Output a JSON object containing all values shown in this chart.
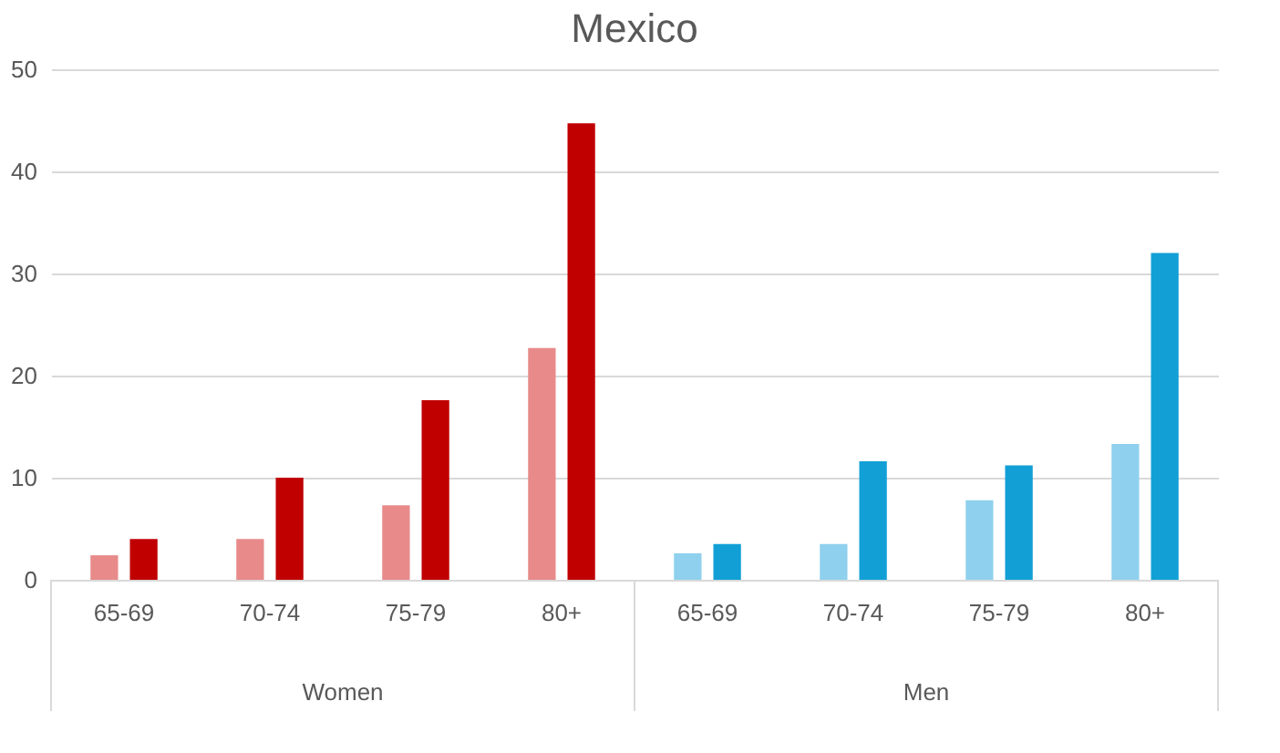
{
  "chart_data": {
    "type": "bar",
    "title": "Mexico",
    "categories": [
      "65-69",
      "70-74",
      "75-79",
      "80+",
      "65-69",
      "70-74",
      "75-79",
      "80+"
    ],
    "series": [
      {
        "colors": [
          "#e88a8a",
          "#e88a8a",
          "#e88a8a",
          "#e88a8a",
          "#8fd0ee",
          "#8fd0ee",
          "#8fd0ee",
          "#8fd0ee"
        ],
        "values": [
          2.4,
          4.0,
          7.3,
          22.7,
          2.6,
          3.5,
          7.8,
          13.3
        ]
      },
      {
        "colors": [
          "#c00000",
          "#c00000",
          "#c00000",
          "#c00000",
          "#119fd6",
          "#119fd6",
          "#119fd6",
          "#119fd6"
        ],
        "values": [
          4.0,
          10.0,
          17.6,
          44.7,
          3.5,
          11.6,
          11.2,
          32.0
        ]
      }
    ],
    "annotations": [
      "Women",
      "Men"
    ],
    "ylim": [
      0,
      50
    ],
    "yticks": [
      0,
      10,
      20,
      30,
      40,
      50
    ],
    "grid": "y"
  }
}
